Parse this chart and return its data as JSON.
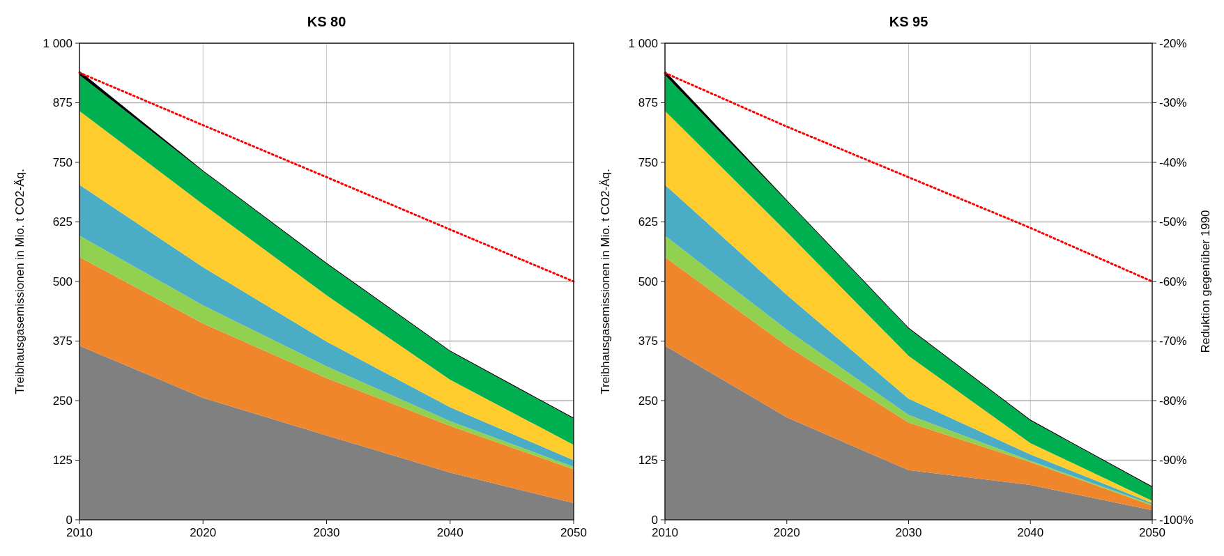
{
  "chart_data": [
    {
      "type": "area",
      "title": "KS 80",
      "ylabel": "Treibhausgasemissionen in Mio. t CO2-Äq.",
      "x": [
        2010,
        2020,
        2030,
        2040,
        2050
      ],
      "xlim": [
        2010,
        2050
      ],
      "xticks": [
        2010,
        2020,
        2030,
        2040,
        2050
      ],
      "ylim": [
        0,
        1000
      ],
      "yticks": [
        0,
        125,
        250,
        375,
        500,
        625,
        750,
        875,
        {
          "value": 1000,
          "label": "1 000"
        }
      ],
      "stacked": true,
      "grid": true,
      "series": [
        {
          "color": "#808080",
          "values": [
            365,
            256,
            177,
            99,
            35
          ]
        },
        {
          "color": "#f0862c",
          "values": [
            186,
            156,
            120,
            98,
            71
          ]
        },
        {
          "color": "#92d050",
          "values": [
            45,
            38,
            25,
            10,
            5
          ]
        },
        {
          "color": "#4bacc6",
          "values": [
            107,
            80,
            52,
            29,
            14
          ]
        },
        {
          "color": "#ffcc2d",
          "values": [
            155,
            132,
            97,
            58,
            32
          ]
        },
        {
          "color": "#00b050",
          "values": [
            75,
            69,
            66,
            59,
            55
          ]
        },
        {
          "color": "#000000",
          "values": [
            9,
            2,
            2,
            2,
            2
          ]
        },
        {
          "type": "line",
          "color": "#ff0000",
          "line_style": "dotted",
          "values": [
            938,
            828,
            719,
            609,
            500
          ]
        }
      ]
    },
    {
      "type": "area",
      "title": "KS 95",
      "ylabel": "Treibhausgasemissionen in Mio. t CO2-Äq.",
      "y2label": "Reduktion gegenüber 1990",
      "x": [
        2010,
        2020,
        2030,
        2040,
        2050
      ],
      "xlim": [
        2010,
        2050
      ],
      "xticks": [
        2010,
        2020,
        2030,
        2040,
        2050
      ],
      "ylim": [
        0,
        1000
      ],
      "yticks": [
        0,
        125,
        250,
        375,
        500,
        625,
        750,
        875,
        {
          "value": 1000,
          "label": "1 000"
        }
      ],
      "y2lim": [
        -100,
        -20
      ],
      "y2ticks": [
        {
          "value": -100,
          "label": "-100%"
        },
        {
          "value": -90,
          "label": "-90%"
        },
        {
          "value": -80,
          "label": "-80%"
        },
        {
          "value": -70,
          "label": "-70%"
        },
        {
          "value": -60,
          "label": "-60%"
        },
        {
          "value": -50,
          "label": "-50%"
        },
        {
          "value": -40,
          "label": "-40%"
        },
        {
          "value": -30,
          "label": "-30%"
        },
        {
          "value": -20,
          "label": "-20%"
        }
      ],
      "stacked": true,
      "grid": true,
      "series": [
        {
          "color": "#808080",
          "values": [
            365,
            215,
            104,
            73,
            20
          ]
        },
        {
          "color": "#f0862c",
          "values": [
            186,
            150,
            100,
            48,
            10
          ]
        },
        {
          "color": "#92d050",
          "values": [
            45,
            34,
            16,
            3,
            2
          ]
        },
        {
          "color": "#4bacc6",
          "values": [
            107,
            73,
            34,
            13,
            3
          ]
        },
        {
          "color": "#ffcc2d",
          "values": [
            155,
            132,
            90,
            24,
            5
          ]
        },
        {
          "color": "#00b050",
          "values": [
            75,
            65,
            57,
            47,
            28
          ]
        },
        {
          "color": "#000000",
          "values": [
            9,
            2,
            2,
            2,
            2
          ]
        },
        {
          "type": "line",
          "axis": "y2",
          "color": "#ff0000",
          "line_style": "dotted",
          "values": [
            -25,
            -34,
            -42.5,
            -51,
            -60
          ]
        }
      ]
    }
  ]
}
